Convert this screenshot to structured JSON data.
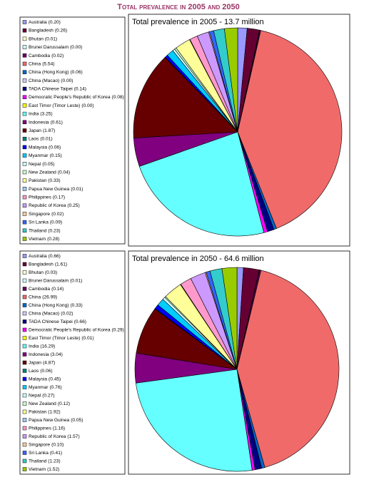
{
  "title": "Total prevalence in 2005 and 2050",
  "chart_data": [
    {
      "type": "pie",
      "title": "Total prevalence in 2005 - 13.7 million",
      "categories": [
        "Australia",
        "Bangladesh",
        "Bhutan",
        "Brunei Darussalam",
        "Cambodia",
        "China",
        "China (Hong Kong)",
        "China (Macao)",
        "TADA Chinese Taipei",
        "Democratic People's Republic of Korea",
        "East Timor (Timor Leste)",
        "India",
        "Indonesia",
        "Japan",
        "Laos",
        "Malaysia",
        "Myanmar",
        "Nepal",
        "New Zealand",
        "Pakistan",
        "Papua New Guinea",
        "Philippines",
        "Republic of Korea",
        "Singapore",
        "Sri Lanka",
        "Thailand",
        "Vietnam"
      ],
      "values": [
        0.2,
        0.26,
        0.01,
        0,
        0.02,
        5.54,
        0.06,
        0,
        0.14,
        0.08,
        0,
        3.25,
        0.61,
        1.87,
        0.01,
        0.06,
        0.15,
        0.05,
        0.04,
        0.33,
        0.01,
        0.17,
        0.25,
        0.02,
        0.09,
        0.23,
        0.28
      ],
      "value_labels": [
        "(0.20)",
        "(0.26)",
        "(0.01)",
        "(0.00)",
        "(0.02)",
        "(5.54)",
        "(0.06)",
        "(0.00)",
        "(0.14)",
        "(0.08)",
        "(0.00)",
        "(3.25)",
        "(0.61)",
        "(1.87)",
        "(0.01)",
        "(0.06)",
        "(0.15)",
        "(0.05)",
        "(0.04)",
        "(0.33)",
        "(0.01)",
        "(0.17)",
        "(0.25)",
        "(0.02)",
        "(0.09)",
        "(0.23)",
        "(0.28)"
      ],
      "colors": [
        "#9999ff",
        "#660033",
        "#ffffcc",
        "#ccffff",
        "#660066",
        "#f06a6a",
        "#0066cc",
        "#ccccff",
        "#000080",
        "#ff00ff",
        "#ffff00",
        "#66ffff",
        "#800080",
        "#660000",
        "#008080",
        "#0000ff",
        "#00ccff",
        "#ccffff",
        "#ccffcc",
        "#ffff99",
        "#99ccff",
        "#ff99cc",
        "#cc99ff",
        "#ffcc99",
        "#3366ff",
        "#33cccc",
        "#99cc00"
      ]
    },
    {
      "type": "pie",
      "title": "Total prevalence in 2050 - 64.6 million",
      "categories": [
        "Australia",
        "Bangladesh",
        "Bhutan",
        "Brunei Darussalam",
        "Cambodia",
        "China",
        "China (Hong Kong)",
        "China (Macao)",
        "TADA Chinese Taipei",
        "Democratic People's Republic of Korea",
        "East Timor (Timor Leste)",
        "India",
        "Indonesia",
        "Japan",
        "Laos",
        "Malaysia",
        "Myanmar",
        "Nepal",
        "New Zealand",
        "Pakistan",
        "Papua New Guinea",
        "Philippines",
        "Republic of Korea",
        "Singapore",
        "Sri Lanka",
        "Thailand",
        "Vietnam"
      ],
      "values": [
        0.66,
        1.61,
        0.03,
        0.01,
        0.14,
        26.99,
        0.33,
        0.02,
        0.66,
        0.29,
        0.01,
        16.29,
        3.04,
        4.87,
        0.06,
        0.45,
        0.76,
        0.27,
        0.12,
        1.92,
        0.05,
        1.16,
        1.57,
        0.1,
        0.41,
        1.23,
        1.52
      ],
      "value_labels": [
        "(0.66)",
        "(1.61)",
        "(0.03)",
        "(0.01)",
        "(0.14)",
        "(26.99)",
        "(0.33)",
        "(0.02)",
        "(0.66)",
        "(0.29)",
        "(0.01)",
        "(16.29)",
        "(3.04)",
        "(4.87)",
        "(0.06)",
        "(0.45)",
        "(0.76)",
        "(0.27)",
        "(0.12)",
        "(1.92)",
        "(0.05)",
        "(1.16)",
        "(1.57)",
        "(0.10)",
        "(0.41)",
        "(1.23)",
        "(1.52)"
      ],
      "colors": [
        "#9999ff",
        "#660033",
        "#ffffcc",
        "#ccffff",
        "#660066",
        "#f06a6a",
        "#0066cc",
        "#ccccff",
        "#000080",
        "#ff00ff",
        "#ffff00",
        "#66ffff",
        "#800080",
        "#660000",
        "#008080",
        "#0000ff",
        "#00ccff",
        "#ccffff",
        "#ccffcc",
        "#ffff99",
        "#99ccff",
        "#ff99cc",
        "#cc99ff",
        "#ffcc99",
        "#3366ff",
        "#33cccc",
        "#99cc00"
      ]
    }
  ]
}
